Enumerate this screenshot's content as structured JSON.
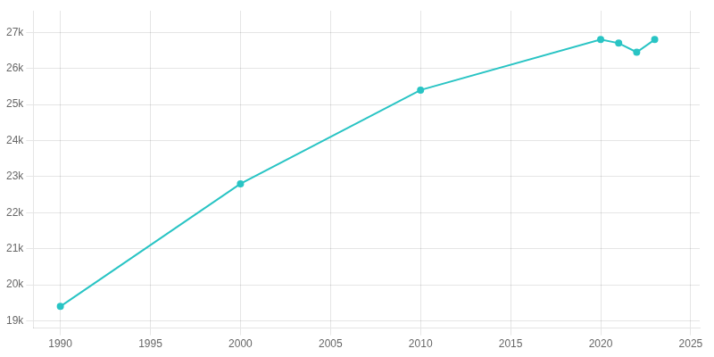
{
  "chart_data": {
    "type": "line",
    "x": [
      1990,
      2000,
      2010,
      2020,
      2021,
      2022,
      2023
    ],
    "values": [
      19400,
      22800,
      25400,
      26800,
      26700,
      26450,
      26800
    ],
    "color": "#29c4c4",
    "marker": "circle",
    "grid": true,
    "xlim": [
      1988.5,
      2025.5
    ],
    "ylim": [
      18800,
      27600
    ],
    "xticks": [
      1990,
      1995,
      2000,
      2005,
      2010,
      2015,
      2020,
      2025
    ],
    "yticks": [
      {
        "value": 19000,
        "label": "19k"
      },
      {
        "value": 20000,
        "label": "20k"
      },
      {
        "value": 21000,
        "label": "21k"
      },
      {
        "value": 22000,
        "label": "22k"
      },
      {
        "value": 23000,
        "label": "23k"
      },
      {
        "value": 24000,
        "label": "24k"
      },
      {
        "value": 25000,
        "label": "25k"
      },
      {
        "value": 26000,
        "label": "26k"
      },
      {
        "value": 27000,
        "label": "27k"
      }
    ]
  }
}
